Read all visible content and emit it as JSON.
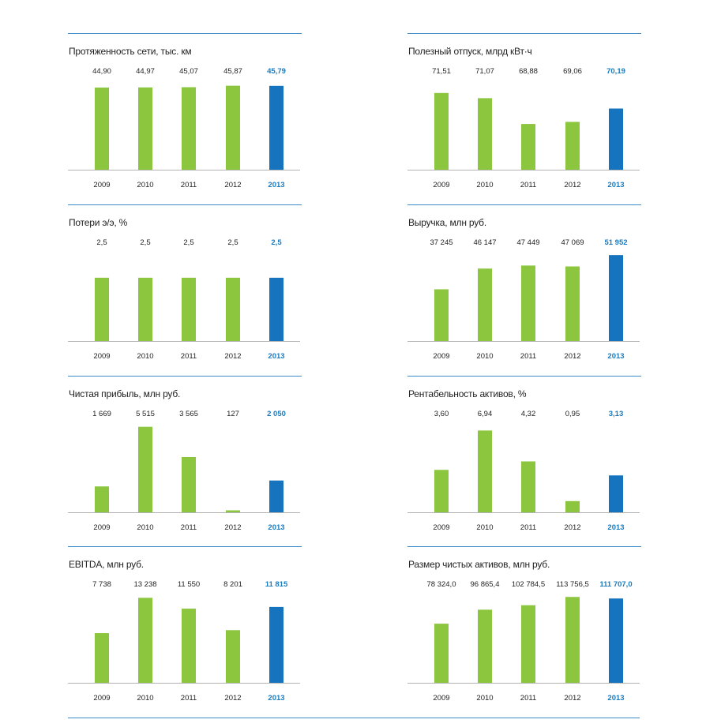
{
  "colors": {
    "normal": "#8cc63f",
    "highlight": "#1673bd",
    "divider": "#3d8ac9",
    "axis": "#b3b3b3"
  },
  "chart_data": [
    {
      "type": "bar",
      "title": "Протяженность сети, тыс. км",
      "categories": [
        "2009",
        "2010",
        "2011",
        "2012",
        "2013"
      ],
      "values": [
        44.9,
        44.97,
        45.07,
        45.87,
        45.79
      ],
      "value_labels": [
        "44,90",
        "44,97",
        "45,07",
        "45,87",
        "45,79"
      ],
      "ylim": [
        0,
        47
      ],
      "highlight_index": 4
    },
    {
      "type": "bar",
      "title": "Полезный отпуск, млрд кВт·ч",
      "categories": [
        "2009",
        "2010",
        "2011",
        "2012",
        "2013"
      ],
      "values": [
        71.51,
        71.07,
        68.88,
        69.06,
        70.19
      ],
      "value_labels": [
        "71,51",
        "71,07",
        "68,88",
        "69,06",
        "70,19"
      ],
      "ylim": [
        65,
        72.3
      ],
      "highlight_index": 4
    },
    {
      "type": "bar",
      "title": "Потери э/э, %",
      "categories": [
        "2009",
        "2010",
        "2011",
        "2012",
        "2013"
      ],
      "values": [
        2.5,
        2.5,
        2.5,
        2.5,
        2.5
      ],
      "value_labels": [
        "2,5",
        "2,5",
        "2,5",
        "2,5",
        "2,5"
      ],
      "ylim": [
        0,
        3.4
      ],
      "highlight_index": 4
    },
    {
      "type": "bar",
      "title": "Выручка, млн руб.",
      "categories": [
        "2009",
        "2010",
        "2011",
        "2012",
        "2013"
      ],
      "values": [
        37245,
        46147,
        47449,
        47069,
        51952
      ],
      "value_labels": [
        "37 245",
        "46 147",
        "47 449",
        "47 069",
        "51 952"
      ],
      "ylim": [
        15000,
        52000
      ],
      "highlight_index": 4
    },
    {
      "type": "bar",
      "title": "Чистая прибыль, млн руб.",
      "categories": [
        "2009",
        "2010",
        "2011",
        "2012",
        "2013"
      ],
      "values": [
        1669,
        5515,
        3565,
        127,
        2050
      ],
      "value_labels": [
        "1 669",
        "5 515",
        "3 565",
        "127",
        "2 050"
      ],
      "ylim": [
        0,
        5550
      ],
      "highlight_index": 4
    },
    {
      "type": "bar",
      "title": "Рентабельность активов, %",
      "categories": [
        "2009",
        "2010",
        "2011",
        "2012",
        "2013"
      ],
      "values": [
        3.6,
        6.94,
        4.32,
        0.95,
        3.13
      ],
      "value_labels": [
        "3,60",
        "6,94",
        "4,32",
        "0,95",
        "3,13"
      ],
      "ylim": [
        0,
        7.3
      ],
      "highlight_index": 4
    },
    {
      "type": "bar",
      "title": "EBITDA, млн руб.",
      "categories": [
        "2009",
        "2010",
        "2011",
        "2012",
        "2013"
      ],
      "values": [
        7738,
        13238,
        11550,
        8201,
        11815
      ],
      "value_labels": [
        "7 738",
        "13 238",
        "11 550",
        "8 201",
        "11 815"
      ],
      "ylim": [
        0,
        13400
      ],
      "highlight_index": 4
    },
    {
      "type": "bar",
      "title": "Размер чистых активов, млн руб.",
      "categories": [
        "2009",
        "2010",
        "2011",
        "2012",
        "2013"
      ],
      "values": [
        78324.0,
        96865.4,
        102784.5,
        113756.5,
        111707.0
      ],
      "value_labels": [
        "78 324,0",
        "96 865,4",
        "102 784,5",
        "113 756,5",
        "111 707,0"
      ],
      "ylim": [
        0,
        114000
      ],
      "highlight_index": 4
    }
  ]
}
